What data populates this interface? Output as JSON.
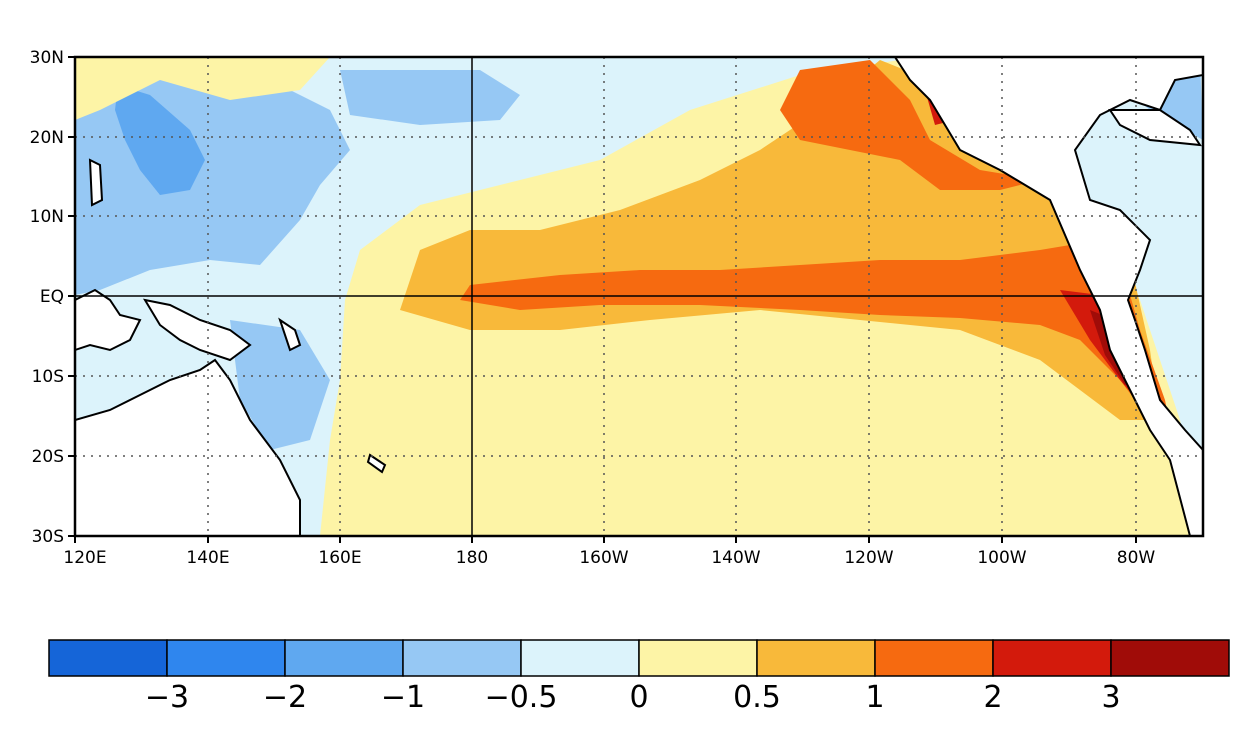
{
  "map": {
    "lat_labels": [
      "30N",
      "20N",
      "10N",
      "EQ",
      "10S",
      "20S",
      "30S"
    ],
    "lon_labels": [
      "120E",
      "140E",
      "160E",
      "180",
      "160W",
      "140W",
      "120W",
      "100W",
      "80W"
    ],
    "grid": "dotted every 20° lon / 10° lat, solid lines at equator and 180",
    "variable": "sea surface temperature anomaly field (colour-filled)"
  },
  "colorbar": {
    "colors": [
      "#1565d8",
      "#2f86ee",
      "#5fa8f0",
      "#96c8f4",
      "#dcf3fb",
      "#fdf4a6",
      "#f8b93a",
      "#f66a10",
      "#d31a0c",
      "#a00c08"
    ],
    "tick_labels": [
      "−3",
      "−2",
      "−1",
      "−0.5",
      "0",
      "0.5",
      "1",
      "2",
      "3"
    ]
  }
}
